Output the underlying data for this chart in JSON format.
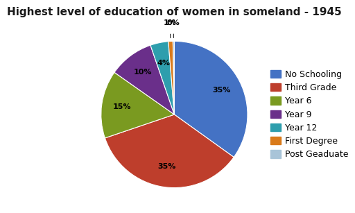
{
  "title": "Highest level of education of women in someland - 1945",
  "labels": [
    "No Schooling",
    "Third Grade",
    "Year 6",
    "Year 9",
    "Year 12",
    "First Degree",
    "Post Geaduate"
  ],
  "values": [
    35,
    35,
    15,
    10,
    4,
    1,
    0
  ],
  "colors": [
    "#4472C4",
    "#BE3E2C",
    "#7A9A20",
    "#6A2F8A",
    "#2E9EAD",
    "#D97A1A",
    "#A8C4D8"
  ],
  "title_fontsize": 11,
  "pct_fontsize": 8,
  "legend_fontsize": 9,
  "background_color": "#FFFFFF"
}
